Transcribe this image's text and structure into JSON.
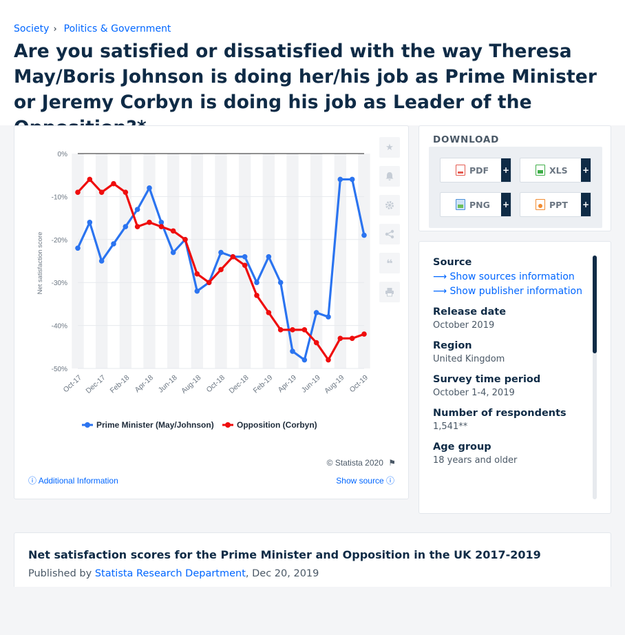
{
  "breadcrumb": {
    "items": [
      "Society",
      "Politics & Government"
    ],
    "separator": "›"
  },
  "title": "Are you satisfied or dissatisfied with the way Theresa May/Boris Johnson is doing her/his job as Prime Minister or Jeremy Corbyn is doing his job as Leader of the Opposition?*",
  "chart_data": {
    "type": "line",
    "ylabel": "Net satisfaction score",
    "ylim": [
      -50,
      0
    ],
    "yticks": [
      "0%",
      "-10%",
      "-20%",
      "-30%",
      "-40%",
      "-50%"
    ],
    "ytick_values": [
      0,
      -10,
      -20,
      -30,
      -40,
      -50
    ],
    "xticks": [
      "Oct-17",
      "Dec-17",
      "Feb-18",
      "Apr-18",
      "Jun-18",
      "Aug-18",
      "Oct-18",
      "Dec-18",
      "Feb-19",
      "Apr-19",
      "Jun-19",
      "Aug-19",
      "Oct-19"
    ],
    "grid": "alternating vertical bands",
    "legend": "bottom",
    "series": [
      {
        "name": "Prime Minister (May/Johnson)",
        "color": "#2b74f0",
        "values": [
          -22,
          -16,
          -25,
          -21,
          -17,
          -13,
          -8,
          -16,
          -23,
          -20,
          -32,
          -30,
          -23,
          -24,
          -24,
          -30,
          -24,
          -30,
          -46,
          -48,
          -37,
          -38,
          -6,
          -6,
          -19
        ]
      },
      {
        "name": "Opposition (Corbyn)",
        "color": "#ef0d0d",
        "values": [
          -9,
          -6,
          -9,
          -7,
          -9,
          -17,
          -16,
          -17,
          -18,
          -20,
          -28,
          -30,
          -27,
          -24,
          -26,
          -33,
          -37,
          -41,
          -41,
          -41,
          -44,
          -48,
          -43,
          -43,
          -42
        ]
      }
    ]
  },
  "chart_tools": [
    "star-icon",
    "bell-icon",
    "gear-icon",
    "share-icon",
    "quote-icon",
    "print-icon"
  ],
  "credit": "© Statista 2020",
  "additional_info": "Additional Information",
  "show_source": "Show source",
  "download": {
    "title": "DOWNLOAD",
    "buttons": [
      {
        "label": "PDF",
        "color": "#e45a4f"
      },
      {
        "label": "XLS",
        "color": "#3fae49"
      },
      {
        "label": "PNG",
        "color": "#4a90d9"
      },
      {
        "label": "PPT",
        "color": "#f28b30"
      }
    ],
    "plus": "+"
  },
  "info": {
    "source_label": "Source",
    "show_sources": "Show sources information",
    "show_publisher": "Show publisher information",
    "release_label": "Release date",
    "release_value": "October 2019",
    "region_label": "Region",
    "region_value": "United Kingdom",
    "survey_label": "Survey time period",
    "survey_value": "October 1-4, 2019",
    "respondents_label": "Number of respondents",
    "respondents_value": "1,541**",
    "age_label": "Age group",
    "age_value": "18 years and older"
  },
  "related": {
    "title": "Net satisfaction scores for the Prime Minister and Opposition in the UK 2017-2019",
    "published_prefix": "Published by",
    "publisher": "Statista Research Department",
    "date": ", Dec 20, 2019"
  }
}
